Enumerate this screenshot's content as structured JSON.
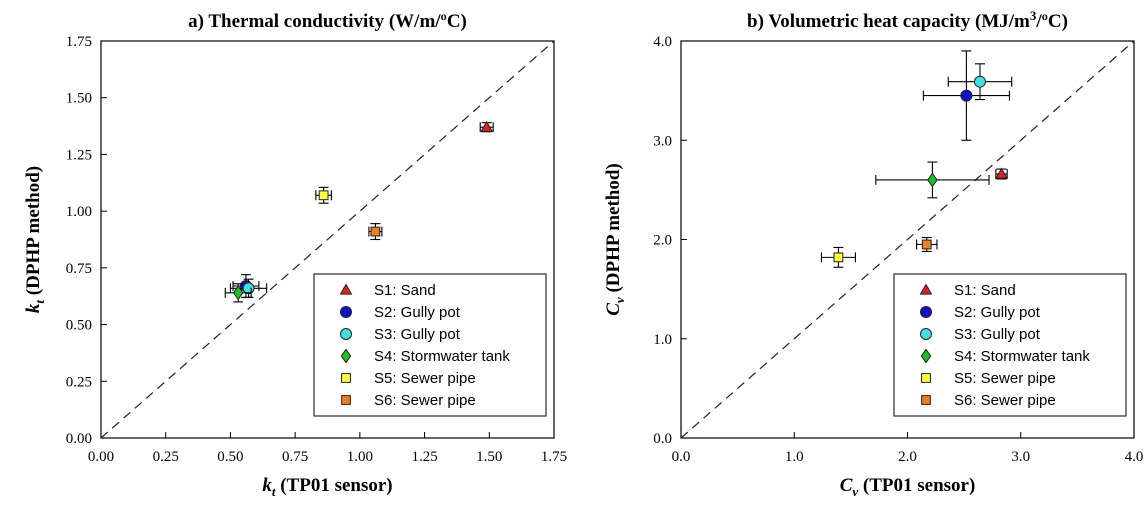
{
  "chart_data": [
    {
      "type": "scatter",
      "title": "a) Thermal conductivity (W/m/ºC)",
      "xlabel": {
        "var": "k",
        "sub": "t",
        "rest": " (TP01 sensor)"
      },
      "ylabel": {
        "var": "k",
        "sub": "t",
        "rest": " (DPHP method)"
      },
      "xlim": [
        0,
        1.75
      ],
      "ylim": [
        0,
        1.75
      ],
      "xticks": [
        "0.00",
        "0.25",
        "0.50",
        "0.75",
        "1.00",
        "1.25",
        "1.50",
        "1.75"
      ],
      "yticks": [
        "0.00",
        "0.25",
        "0.50",
        "0.75",
        "1.00",
        "1.25",
        "1.50",
        "1.75"
      ],
      "reference_line": "1:1 dashed",
      "legend_position": "bottom-right",
      "series": [
        {
          "name": "S1: Sand",
          "marker": "triangle",
          "color": "#e02020",
          "x": 1.49,
          "y": 1.37,
          "xerr": 0.025,
          "yerr": 0.02
        },
        {
          "name": "S2: Gully pot",
          "marker": "circle",
          "color": "#1010d0",
          "x": 0.56,
          "y": 0.67,
          "xerr": 0.05,
          "yerr": 0.05
        },
        {
          "name": "S3: Gully pot",
          "marker": "circle",
          "color": "#40e0e0",
          "x": 0.57,
          "y": 0.66,
          "xerr": 0.07,
          "yerr": 0.04
        },
        {
          "name": "S4: Stormwater tank",
          "marker": "diamond",
          "color": "#20c020",
          "x": 0.53,
          "y": 0.64,
          "xerr": 0.05,
          "yerr": 0.04
        },
        {
          "name": "S5: Sewer pipe",
          "marker": "square",
          "color": "#ffff40",
          "x": 0.86,
          "y": 1.07,
          "xerr": 0.03,
          "yerr": 0.035
        },
        {
          "name": "S6: Sewer pipe",
          "marker": "square",
          "color": "#f08020",
          "x": 1.06,
          "y": 0.91,
          "xerr": 0.025,
          "yerr": 0.035
        }
      ]
    },
    {
      "type": "scatter",
      "title": "b) Volumetric heat capacity (MJ/m³/ºC)",
      "xlabel": {
        "var": "C",
        "sub": "v",
        "rest": " (TP01 sensor)"
      },
      "ylabel": {
        "var": "C",
        "sub": "v",
        "rest": " (DPHP method)"
      },
      "xlim": [
        0,
        4
      ],
      "ylim": [
        0,
        4
      ],
      "xticks": [
        "0.0",
        "1.0",
        "2.0",
        "3.0",
        "4.0"
      ],
      "yticks": [
        "0.0",
        "1.0",
        "2.0",
        "3.0",
        "4.0"
      ],
      "reference_line": "1:1 dashed",
      "legend_position": "bottom-right",
      "series": [
        {
          "name": "S1: Sand",
          "marker": "triangle",
          "color": "#e02020",
          "x": 2.83,
          "y": 2.66,
          "xerr": 0.05,
          "yerr": 0.05
        },
        {
          "name": "S2: Gully pot",
          "marker": "circle",
          "color": "#1010d0",
          "x": 2.52,
          "y": 3.45,
          "xerr": 0.38,
          "yerr": 0.45
        },
        {
          "name": "S3: Gully pot",
          "marker": "circle",
          "color": "#40e0e0",
          "x": 2.64,
          "y": 3.59,
          "xerr": 0.28,
          "yerr": 0.18
        },
        {
          "name": "S4: Stormwater tank",
          "marker": "diamond",
          "color": "#20c020",
          "x": 2.22,
          "y": 2.6,
          "xerr": 0.5,
          "yerr": 0.18
        },
        {
          "name": "S5: Sewer pipe",
          "marker": "square",
          "color": "#ffff40",
          "x": 1.39,
          "y": 1.82,
          "xerr": 0.15,
          "yerr": 0.1
        },
        {
          "name": "S6: Sewer pipe",
          "marker": "square",
          "color": "#f08020",
          "x": 2.17,
          "y": 1.95,
          "xerr": 0.09,
          "yerr": 0.07
        }
      ]
    }
  ]
}
